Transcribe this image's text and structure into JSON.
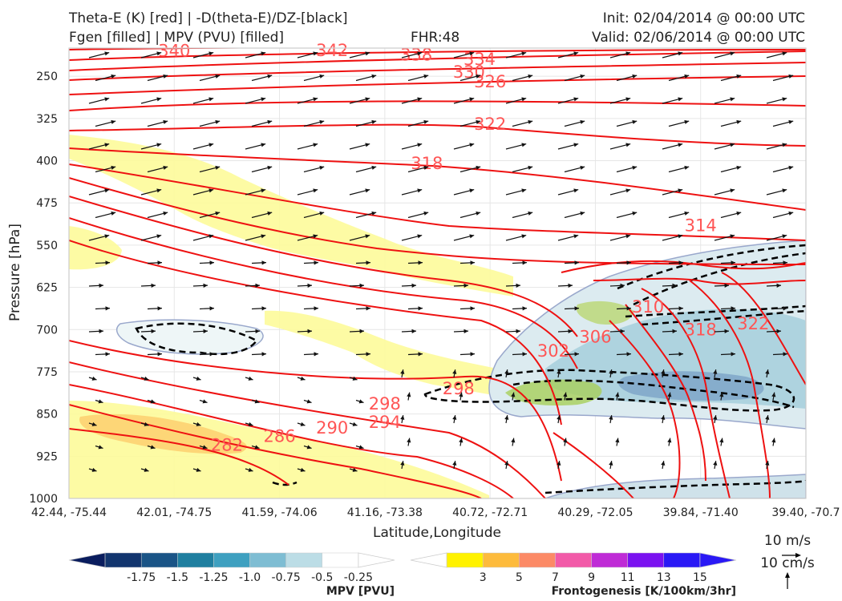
{
  "header": {
    "title_line1": "Theta-E (K) [red] | -D(theta-E)/DZ-[black]",
    "title_line2": "Fgen [filled] | MPV (PVU) [filled]",
    "fhr": "FHR:48",
    "init": "Init: 02/04/2014 @ 00:00 UTC",
    "valid": "Valid: 02/06/2014 @ 00:00 UTC"
  },
  "colors": {
    "theta_e": "#ee1111",
    "theta_e_label": "#ff5555",
    "ddz": "#000000",
    "mpv_outline": "#9aa8cc"
  },
  "chart_data": {
    "type": "cross-section",
    "xlabel": "Latitude,Longitude",
    "ylabel": "Pressure [hPa]",
    "y_ticks": [
      250,
      325,
      400,
      475,
      550,
      625,
      700,
      775,
      850,
      925,
      1000
    ],
    "ylim": [
      1000,
      200
    ],
    "x_ticks": [
      "42.44, -75.44",
      "42.01, -74.75",
      "41.59, -74.06",
      "41.16, -73.38",
      "40.72, -72.71",
      "40.29, -72.05",
      "39.84, -71.40",
      "39.40, -70.7"
    ],
    "theta_e_contour_labels": [
      {
        "value": "340",
        "x": 1.0,
        "p": 205
      },
      {
        "value": "342",
        "x": 2.5,
        "p": 204
      },
      {
        "value": "338",
        "x": 3.3,
        "p": 212
      },
      {
        "value": "334",
        "x": 3.9,
        "p": 220
      },
      {
        "value": "330",
        "x": 3.8,
        "p": 243
      },
      {
        "value": "326",
        "x": 4.0,
        "p": 260
      },
      {
        "value": "322",
        "x": 4.0,
        "p": 335
      },
      {
        "value": "318",
        "x": 3.4,
        "p": 405
      },
      {
        "value": "314",
        "x": 6.0,
        "p": 515
      },
      {
        "value": "310",
        "x": 5.5,
        "p": 660
      },
      {
        "value": "306",
        "x": 5.0,
        "p": 713
      },
      {
        "value": "302",
        "x": 4.6,
        "p": 738
      },
      {
        "value": "298",
        "x": 3.7,
        "p": 805
      },
      {
        "value": "298",
        "x": 3.0,
        "p": 832
      },
      {
        "value": "294",
        "x": 3.0,
        "p": 865
      },
      {
        "value": "290",
        "x": 2.5,
        "p": 875
      },
      {
        "value": "286",
        "x": 2.0,
        "p": 890
      },
      {
        "value": "282",
        "x": 1.5,
        "p": 905
      },
      {
        "value": "318",
        "x": 6.0,
        "p": 700
      },
      {
        "value": "322",
        "x": 6.5,
        "p": 690
      }
    ],
    "mpv_colorbar": {
      "title": "MPV [PVU]",
      "ticks": [
        "-1.75",
        "-1.5",
        "-1.25",
        "-1.0",
        "-0.75",
        "-0.5",
        "-0.25"
      ],
      "colors": [
        "#0a1d5e",
        "#12356e",
        "#1a5486",
        "#1f7fa0",
        "#3ea0c0",
        "#7ebdd3",
        "#bcdde6",
        "#ffffff"
      ]
    },
    "fgen_colorbar": {
      "title": "Frontogenesis [K/100km/3hr]",
      "ticks": [
        "3",
        "5",
        "7",
        "9",
        "11",
        "13",
        "15"
      ],
      "colors": [
        "#ffffff",
        "#fff200",
        "#fdbb3c",
        "#fc8a66",
        "#f25aa8",
        "#bf2bd6",
        "#7a12f0",
        "#2a19f5"
      ]
    },
    "reference_vectors": {
      "horizontal": "10 m/s",
      "vertical": "10 cm/s"
    },
    "grid": true
  }
}
